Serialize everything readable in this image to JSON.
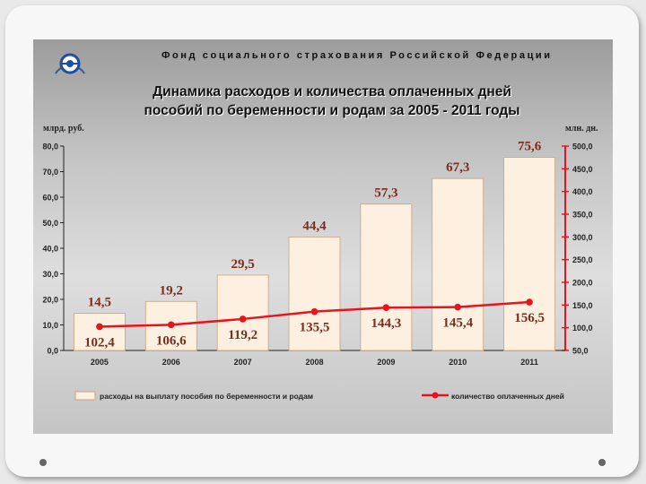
{
  "header": {
    "organization": "Фонд социального страхования Российской Федерации",
    "title_line1": "Динамика расходов и количества оплаченных дней",
    "title_line2": "пособий по беременности и родам за 2005 - 2011 годы"
  },
  "chart_data": {
    "type": "bar",
    "ylabel_left": "млрд. руб.",
    "ylabel_right": "млн. дн.",
    "categories": [
      "2005",
      "2006",
      "2007",
      "2008",
      "2009",
      "2010",
      "2011"
    ],
    "ylim_left": [
      0,
      80
    ],
    "ylim_right": [
      50,
      500
    ],
    "yticks_left": [
      "0,0",
      "10,0",
      "20,0",
      "30,0",
      "40,0",
      "50,0",
      "60,0",
      "70,0",
      "80,0"
    ],
    "yticks_right": [
      "50,0",
      "100,0",
      "150,0",
      "200,0",
      "250,0",
      "300,0",
      "350,0",
      "400,0",
      "450,0",
      "500,0"
    ],
    "series": [
      {
        "name": "расходы на выплату пособия по беременности и родам",
        "type": "bar",
        "axis": "left",
        "values": [
          14.5,
          19.2,
          29.5,
          44.4,
          57.3,
          67.3,
          75.6
        ],
        "labels": [
          "14,5",
          "19,2",
          "29,5",
          "44,4",
          "57,3",
          "67,3",
          "75,6"
        ],
        "color": "#fdf0e0"
      },
      {
        "name": "количество оплаченных дней",
        "type": "line",
        "axis": "right",
        "values": [
          102.4,
          106.6,
          119.2,
          135.5,
          144.3,
          145.4,
          156.5
        ],
        "labels": [
          "102,4",
          "106,6",
          "119,2",
          "135,5",
          "144,3",
          "145,4",
          "156,5"
        ],
        "color": "#e8141c"
      }
    ],
    "legend_position": "bottom",
    "label_color": "#7a2e1e"
  }
}
